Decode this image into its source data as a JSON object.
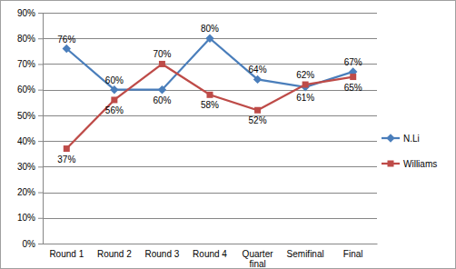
{
  "chart_data": {
    "type": "line",
    "categories": [
      "Round 1",
      "Round 2",
      "Round 3",
      "Round 4",
      "Quarter final",
      "Semifinal",
      "Final"
    ],
    "series": [
      {
        "name": "N.Li",
        "color": "#4a7ebb",
        "marker": "diamond",
        "values": [
          76,
          60,
          60,
          80,
          64,
          61,
          67
        ],
        "value_labels": [
          "76%",
          "60%",
          "60%",
          "80%",
          "64%",
          "61%",
          "67%"
        ]
      },
      {
        "name": "Williams",
        "color": "#be4b48",
        "marker": "square",
        "values": [
          37,
          56,
          70,
          58,
          52,
          62,
          65
        ],
        "value_labels": [
          "37%",
          "56%",
          "70%",
          "58%",
          "52%",
          "62%",
          "65%"
        ]
      }
    ],
    "ylim": [
      0,
      90
    ],
    "yticks": [
      {
        "value": 0,
        "label": "0%"
      },
      {
        "value": 10,
        "label": "10%"
      },
      {
        "value": 20,
        "label": "20%"
      },
      {
        "value": 30,
        "label": "30%"
      },
      {
        "value": 40,
        "label": "40%"
      },
      {
        "value": 50,
        "label": "50%"
      },
      {
        "value": 60,
        "label": "60%"
      },
      {
        "value": 70,
        "label": "70%"
      },
      {
        "value": 80,
        "label": "80%"
      },
      {
        "value": 90,
        "label": "90%"
      }
    ],
    "grid": true,
    "data_labels": true,
    "legend": "right"
  }
}
